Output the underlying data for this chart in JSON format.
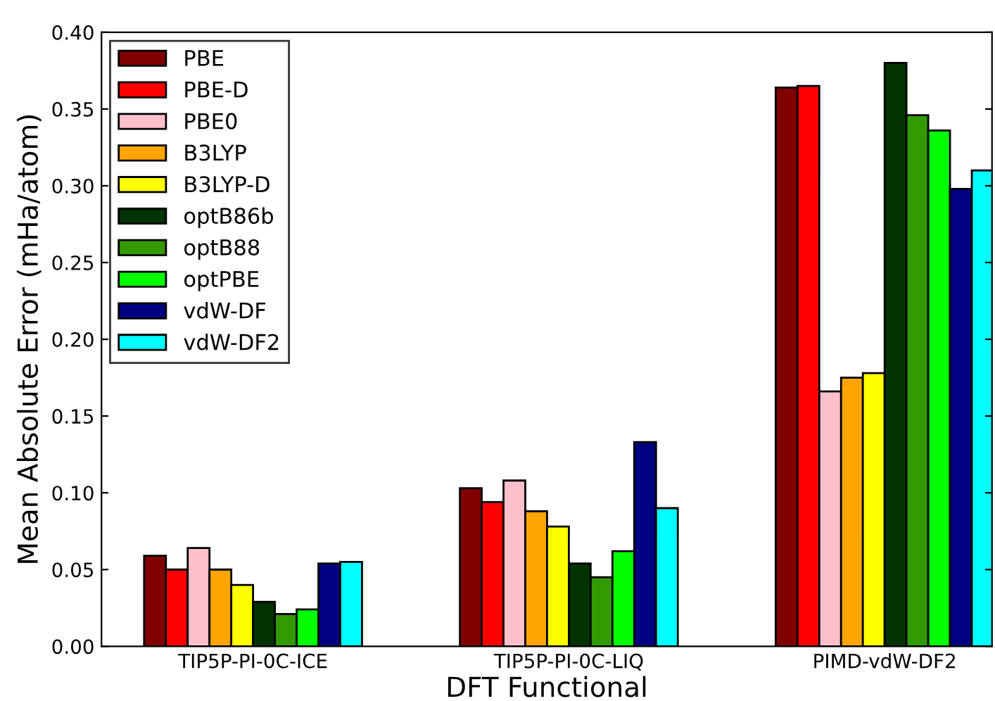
{
  "chart_data": {
    "type": "bar",
    "xlabel": "DFT Functional",
    "ylabel": "Mean Absolute Error (mHa/atom)",
    "categories": [
      "TIP5P-PI-0C-ICE",
      "TIP5P-PI-0C-LIQ",
      "PIMD-vdW-DF2"
    ],
    "series": [
      {
        "name": "PBE",
        "color": "#800000",
        "values": [
          0.059,
          0.103,
          0.364
        ]
      },
      {
        "name": "PBE-D",
        "color": "#ff0000",
        "values": [
          0.05,
          0.094,
          0.365
        ]
      },
      {
        "name": "PBE0",
        "color": "#ffc0cb",
        "values": [
          0.064,
          0.108,
          0.166
        ]
      },
      {
        "name": "B3LYP",
        "color": "#ffa500",
        "values": [
          0.05,
          0.088,
          0.175
        ]
      },
      {
        "name": "B3LYP-D",
        "color": "#ffff00",
        "values": [
          0.04,
          0.078,
          0.178
        ]
      },
      {
        "name": "optB86b",
        "color": "#003300",
        "values": [
          0.029,
          0.054,
          0.38
        ]
      },
      {
        "name": "optB88",
        "color": "#339900",
        "values": [
          0.021,
          0.045,
          0.346
        ]
      },
      {
        "name": "optPBE",
        "color": "#00ff00",
        "values": [
          0.024,
          0.062,
          0.336
        ]
      },
      {
        "name": "vdW-DF",
        "color": "#000080",
        "values": [
          0.054,
          0.133,
          0.298
        ]
      },
      {
        "name": "vdW-DF2",
        "color": "#00ffff",
        "values": [
          0.055,
          0.09,
          0.31
        ]
      }
    ],
    "ylim": [
      0,
      0.4
    ],
    "yticks": [
      {
        "value": 0,
        "label": "0.00"
      },
      {
        "value": 0.05,
        "label": "0.05"
      },
      {
        "value": 0.1,
        "label": "0.10"
      },
      {
        "value": 0.15,
        "label": "0.15"
      },
      {
        "value": 0.2,
        "label": "0.20"
      },
      {
        "value": 0.25,
        "label": "0.25"
      },
      {
        "value": 0.3,
        "label": "0.30"
      },
      {
        "value": 0.35,
        "label": "0.35"
      },
      {
        "value": 0.4,
        "label": "0.40"
      }
    ],
    "grid": false,
    "legend": "top left"
  }
}
